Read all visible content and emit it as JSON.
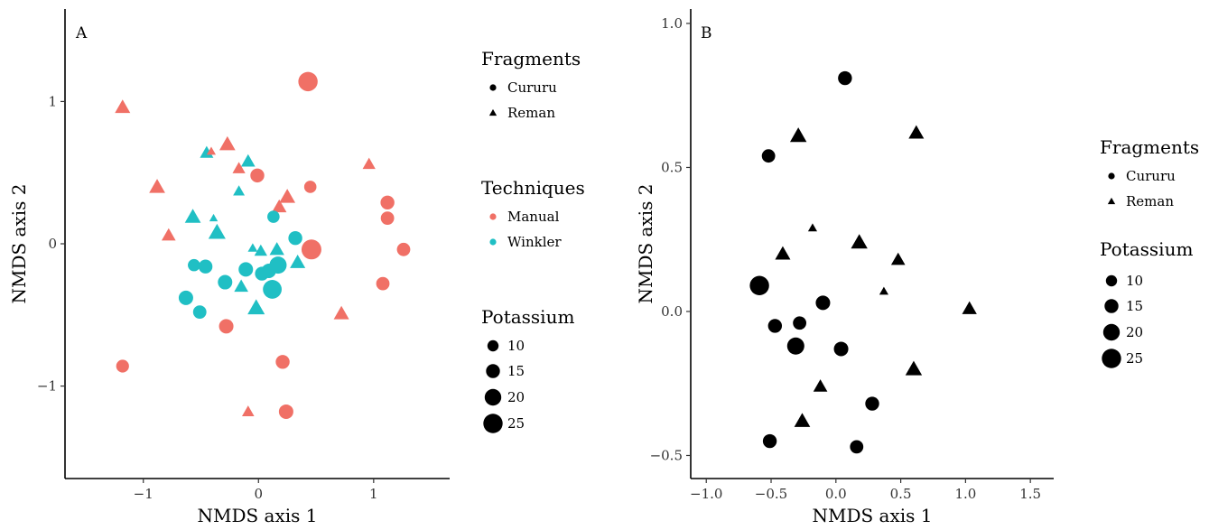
{
  "chart_data": [
    {
      "type": "scatter",
      "panel": "A",
      "xlabel": "NMDS axis 1",
      "ylabel": "NMDS axis 2",
      "xlim": [
        -1.68,
        1.66
      ],
      "ylim": [
        -1.65,
        1.65
      ],
      "xticks": [
        -1,
        0,
        1
      ],
      "yticks": [
        -1,
        0,
        1
      ],
      "xtick_labels": [
        "−1",
        "0",
        "1"
      ],
      "ytick_labels": [
        "−1",
        "0",
        "1"
      ],
      "grid": false,
      "colors": {
        "Manual": "#f07066",
        "Winkler": "#20bfc4"
      },
      "legend": {
        "position": "right",
        "fragments_title": "Fragments",
        "fragments": [
          "Cururu",
          "Reman"
        ],
        "techniques_title": "Techniques",
        "techniques": [
          "Manual",
          "Winkler"
        ],
        "potassium_title": "Potassium",
        "potassium": [
          10,
          15,
          20,
          25
        ]
      },
      "points": [
        {
          "x": 0.43,
          "y": 1.14,
          "fragment": "Cururu",
          "technique": "Manual",
          "potassium": 25
        },
        {
          "x": -1.18,
          "y": 0.96,
          "fragment": "Reman",
          "technique": "Manual",
          "potassium": 14
        },
        {
          "x": -0.27,
          "y": 0.7,
          "fragment": "Reman",
          "technique": "Manual",
          "potassium": 15
        },
        {
          "x": -0.45,
          "y": 0.64,
          "fragment": "Reman",
          "technique": "Winkler",
          "potassium": 11
        },
        {
          "x": -0.41,
          "y": 0.65,
          "fragment": "Reman",
          "technique": "Manual",
          "potassium": 4
        },
        {
          "x": -0.09,
          "y": 0.58,
          "fragment": "Reman",
          "technique": "Winkler",
          "potassium": 12
        },
        {
          "x": 0.96,
          "y": 0.56,
          "fragment": "Reman",
          "technique": "Manual",
          "potassium": 10
        },
        {
          "x": -0.17,
          "y": 0.53,
          "fragment": "Reman",
          "technique": "Manual",
          "potassium": 10
        },
        {
          "x": -0.01,
          "y": 0.48,
          "fragment": "Cururu",
          "technique": "Manual",
          "potassium": 15
        },
        {
          "x": -0.88,
          "y": 0.4,
          "fragment": "Reman",
          "technique": "Manual",
          "potassium": 15
        },
        {
          "x": 0.45,
          "y": 0.4,
          "fragment": "Cururu",
          "technique": "Manual",
          "potassium": 12
        },
        {
          "x": -0.17,
          "y": 0.37,
          "fragment": "Reman",
          "technique": "Winkler",
          "potassium": 8
        },
        {
          "x": 0.25,
          "y": 0.33,
          "fragment": "Reman",
          "technique": "Manual",
          "potassium": 15
        },
        {
          "x": 1.12,
          "y": 0.29,
          "fragment": "Cururu",
          "technique": "Manual",
          "potassium": 15
        },
        {
          "x": 0.18,
          "y": 0.26,
          "fragment": "Reman",
          "technique": "Manual",
          "potassium": 13
        },
        {
          "x": 0.13,
          "y": 0.19,
          "fragment": "Cururu",
          "technique": "Winkler",
          "potassium": 12
        },
        {
          "x": -0.57,
          "y": 0.19,
          "fragment": "Reman",
          "technique": "Winkler",
          "potassium": 15
        },
        {
          "x": 1.12,
          "y": 0.18,
          "fragment": "Cururu",
          "technique": "Manual",
          "potassium": 14
        },
        {
          "x": -0.39,
          "y": 0.18,
          "fragment": "Reman",
          "technique": "Winkler",
          "potassium": 3
        },
        {
          "x": -0.36,
          "y": 0.08,
          "fragment": "Reman",
          "technique": "Winkler",
          "potassium": 17
        },
        {
          "x": -0.78,
          "y": 0.06,
          "fragment": "Reman",
          "technique": "Manual",
          "potassium": 12
        },
        {
          "x": 0.32,
          "y": 0.04,
          "fragment": "Cururu",
          "technique": "Winkler",
          "potassium": 15
        },
        {
          "x": -0.05,
          "y": -0.03,
          "fragment": "Reman",
          "technique": "Winkler",
          "potassium": 5
        },
        {
          "x": 0.02,
          "y": -0.05,
          "fragment": "Reman",
          "technique": "Winkler",
          "potassium": 10
        },
        {
          "x": 0.16,
          "y": -0.04,
          "fragment": "Reman",
          "technique": "Winkler",
          "potassium": 13
        },
        {
          "x": 0.46,
          "y": -0.04,
          "fragment": "Cururu",
          "technique": "Manual",
          "potassium": 26
        },
        {
          "x": 1.26,
          "y": -0.04,
          "fragment": "Cururu",
          "technique": "Manual",
          "potassium": 14
        },
        {
          "x": -0.56,
          "y": -0.15,
          "fragment": "Cururu",
          "technique": "Winkler",
          "potassium": 12
        },
        {
          "x": -0.46,
          "y": -0.16,
          "fragment": "Cururu",
          "technique": "Winkler",
          "potassium": 15
        },
        {
          "x": 0.17,
          "y": -0.15,
          "fragment": "Cururu",
          "technique": "Winkler",
          "potassium": 21
        },
        {
          "x": -0.11,
          "y": -0.18,
          "fragment": "Cururu",
          "technique": "Winkler",
          "potassium": 16
        },
        {
          "x": 0.03,
          "y": -0.21,
          "fragment": "Cururu",
          "technique": "Winkler",
          "potassium": 15
        },
        {
          "x": 0.09,
          "y": -0.19,
          "fragment": "Cururu",
          "technique": "Winkler",
          "potassium": 16
        },
        {
          "x": 0.34,
          "y": -0.13,
          "fragment": "Reman",
          "technique": "Winkler",
          "potassium": 14
        },
        {
          "x": -0.29,
          "y": -0.27,
          "fragment": "Cururu",
          "technique": "Winkler",
          "potassium": 16
        },
        {
          "x": -0.15,
          "y": -0.3,
          "fragment": "Reman",
          "technique": "Winkler",
          "potassium": 12
        },
        {
          "x": 0.12,
          "y": -0.32,
          "fragment": "Cururu",
          "technique": "Winkler",
          "potassium": 24
        },
        {
          "x": 1.08,
          "y": -0.28,
          "fragment": "Cururu",
          "technique": "Manual",
          "potassium": 14
        },
        {
          "x": -0.63,
          "y": -0.38,
          "fragment": "Cururu",
          "technique": "Winkler",
          "potassium": 16
        },
        {
          "x": -0.02,
          "y": -0.45,
          "fragment": "Reman",
          "technique": "Winkler",
          "potassium": 17
        },
        {
          "x": -0.51,
          "y": -0.48,
          "fragment": "Cururu",
          "technique": "Winkler",
          "potassium": 14
        },
        {
          "x": 0.72,
          "y": -0.49,
          "fragment": "Reman",
          "technique": "Manual",
          "potassium": 14
        },
        {
          "x": -0.28,
          "y": -0.58,
          "fragment": "Cururu",
          "technique": "Manual",
          "potassium": 16
        },
        {
          "x": 0.21,
          "y": -0.83,
          "fragment": "Cururu",
          "technique": "Manual",
          "potassium": 15
        },
        {
          "x": -1.18,
          "y": -0.86,
          "fragment": "Cururu",
          "technique": "Manual",
          "potassium": 13
        },
        {
          "x": -0.09,
          "y": -1.18,
          "fragment": "Reman",
          "technique": "Manual",
          "potassium": 9
        },
        {
          "x": 0.24,
          "y": -1.18,
          "fragment": "Cururu",
          "technique": "Manual",
          "potassium": 16
        }
      ]
    },
    {
      "type": "scatter",
      "panel": "B",
      "xlabel": "NMDS axis 1",
      "ylabel": "NMDS axis 2",
      "xlim": [
        -1.12,
        1.68
      ],
      "ylim": [
        -0.58,
        1.05
      ],
      "xticks": [
        -1.0,
        -0.5,
        0.0,
        0.5,
        1.0,
        1.5
      ],
      "yticks": [
        -0.5,
        0.0,
        0.5,
        1.0
      ],
      "xtick_labels": [
        "−1.0",
        "−0.5",
        "0.0",
        "0.5",
        "1.0",
        "1.5"
      ],
      "ytick_labels": [
        "−0.5",
        "0.0",
        "0.5",
        "1.0"
      ],
      "grid": false,
      "color": "#000000",
      "legend": {
        "position": "right",
        "fragments_title": "Fragments",
        "fragments": [
          "Cururu",
          "Reman"
        ],
        "potassium_title": "Potassium",
        "potassium": [
          10,
          15,
          20,
          25
        ]
      },
      "points": [
        {
          "x": 0.07,
          "y": 0.81,
          "fragment": "Cururu",
          "potassium": 15
        },
        {
          "x": -0.29,
          "y": 0.61,
          "fragment": "Reman",
          "potassium": 16
        },
        {
          "x": 0.62,
          "y": 0.62,
          "fragment": "Reman",
          "potassium": 14
        },
        {
          "x": -0.52,
          "y": 0.54,
          "fragment": "Cururu",
          "potassium": 14
        },
        {
          "x": -0.18,
          "y": 0.29,
          "fragment": "Reman",
          "potassium": 4
        },
        {
          "x": 0.18,
          "y": 0.24,
          "fragment": "Reman",
          "potassium": 16
        },
        {
          "x": -0.41,
          "y": 0.2,
          "fragment": "Reman",
          "potassium": 14
        },
        {
          "x": 0.48,
          "y": 0.18,
          "fragment": "Reman",
          "potassium": 12
        },
        {
          "x": -0.59,
          "y": 0.09,
          "fragment": "Cururu",
          "potassium": 25
        },
        {
          "x": 0.37,
          "y": 0.07,
          "fragment": "Reman",
          "potassium": 4
        },
        {
          "x": -0.1,
          "y": 0.03,
          "fragment": "Cururu",
          "potassium": 16
        },
        {
          "x": 1.03,
          "y": 0.01,
          "fragment": "Reman",
          "potassium": 13
        },
        {
          "x": -0.28,
          "y": -0.04,
          "fragment": "Cururu",
          "potassium": 14
        },
        {
          "x": -0.47,
          "y": -0.05,
          "fragment": "Cururu",
          "potassium": 15
        },
        {
          "x": -0.31,
          "y": -0.12,
          "fragment": "Cururu",
          "potassium": 21
        },
        {
          "x": 0.04,
          "y": -0.13,
          "fragment": "Cururu",
          "potassium": 16
        },
        {
          "x": 0.6,
          "y": -0.2,
          "fragment": "Reman",
          "potassium": 16
        },
        {
          "x": -0.12,
          "y": -0.26,
          "fragment": "Reman",
          "potassium": 12
        },
        {
          "x": 0.28,
          "y": -0.32,
          "fragment": "Cururu",
          "potassium": 15
        },
        {
          "x": -0.26,
          "y": -0.38,
          "fragment": "Reman",
          "potassium": 15
        },
        {
          "x": -0.51,
          "y": -0.45,
          "fragment": "Cururu",
          "potassium": 15
        },
        {
          "x": 0.16,
          "y": -0.47,
          "fragment": "Cururu",
          "potassium": 14
        }
      ]
    }
  ]
}
